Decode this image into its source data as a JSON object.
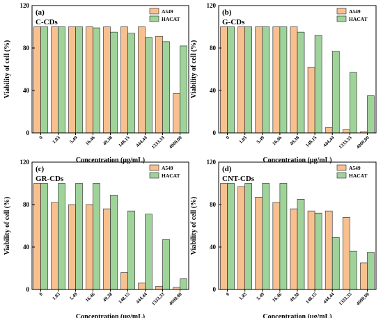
{
  "chart_data": [
    {
      "type": "bar",
      "panel_letter": "(a)",
      "panel_name": "C-CDs",
      "xlabel": "Concentration (μg/mL)",
      "ylabel": "Viability of cell (%)",
      "ylim": [
        0,
        120
      ],
      "yticks": [
        0,
        40,
        80,
        120
      ],
      "legend_position": "top-right",
      "categories": [
        "0",
        "1.83",
        "5.49",
        "16.46",
        "49.38",
        "148.15",
        "444.44",
        "1333.33",
        "4000.00"
      ],
      "series": [
        {
          "name": "A549",
          "color": "#f9c08f",
          "values": [
            100,
            100,
            100,
            100,
            100,
            100,
            100,
            91,
            37
          ]
        },
        {
          "name": "HACAT",
          "color": "#9fd39a",
          "values": [
            100,
            100,
            100,
            99,
            95,
            94,
            90,
            86,
            82
          ]
        }
      ]
    },
    {
      "type": "bar",
      "panel_letter": "(b)",
      "panel_name": "G-CDs",
      "xlabel": "Concentration (μg/mL)",
      "ylabel": "Viability of cell (%)",
      "ylim": [
        0,
        120
      ],
      "yticks": [
        0,
        40,
        80,
        120
      ],
      "legend_position": "top-right",
      "categories": [
        "0",
        "1.83",
        "5.49",
        "16.46",
        "49.38",
        "148.15",
        "444.44",
        "1333.33",
        "4000.00"
      ],
      "series": [
        {
          "name": "A549",
          "color": "#f9c08f",
          "values": [
            100,
            100,
            100,
            100,
            100,
            62,
            5,
            3,
            1
          ]
        },
        {
          "name": "HACAT",
          "color": "#9fd39a",
          "values": [
            100,
            100,
            100,
            100,
            95,
            92,
            77,
            57,
            35
          ]
        }
      ]
    },
    {
      "type": "bar",
      "panel_letter": "(c)",
      "panel_name": "GR-CDs",
      "xlabel": "Concentration (μg/mL)",
      "ylabel": "Viability of cell (%)",
      "ylim": [
        0,
        120
      ],
      "yticks": [
        0,
        40,
        80,
        120
      ],
      "legend_position": "top-right",
      "categories": [
        "0",
        "1.83",
        "5.49",
        "16.46",
        "49.38",
        "148.15",
        "444.44",
        "1333.33",
        "4000.00"
      ],
      "series": [
        {
          "name": "A549",
          "color": "#f9c08f",
          "values": [
            100,
            82,
            80,
            80,
            76,
            16,
            6,
            3,
            2
          ]
        },
        {
          "name": "HACAT",
          "color": "#9fd39a",
          "values": [
            100,
            100,
            100,
            100,
            89,
            74,
            71,
            47,
            10
          ]
        }
      ]
    },
    {
      "type": "bar",
      "panel_letter": "(d)",
      "panel_name": "CNT-CDs",
      "xlabel": "Concentration (μg/mL)",
      "ylabel": "Viability of cell (%)",
      "ylim": [
        0,
        120
      ],
      "yticks": [
        0,
        40,
        80,
        120
      ],
      "legend_position": "top-right",
      "categories": [
        "0",
        "1.83",
        "5.49",
        "16.46",
        "49.38",
        "148.15",
        "444.44",
        "1333.33",
        "4000.00"
      ],
      "series": [
        {
          "name": "A549",
          "color": "#f9c08f",
          "values": [
            100,
            97,
            87,
            82,
            76,
            74,
            74,
            68,
            25
          ]
        },
        {
          "name": "HACAT",
          "color": "#9fd39a",
          "values": [
            100,
            100,
            100,
            100,
            85,
            72,
            49,
            36,
            35
          ]
        }
      ]
    }
  ]
}
